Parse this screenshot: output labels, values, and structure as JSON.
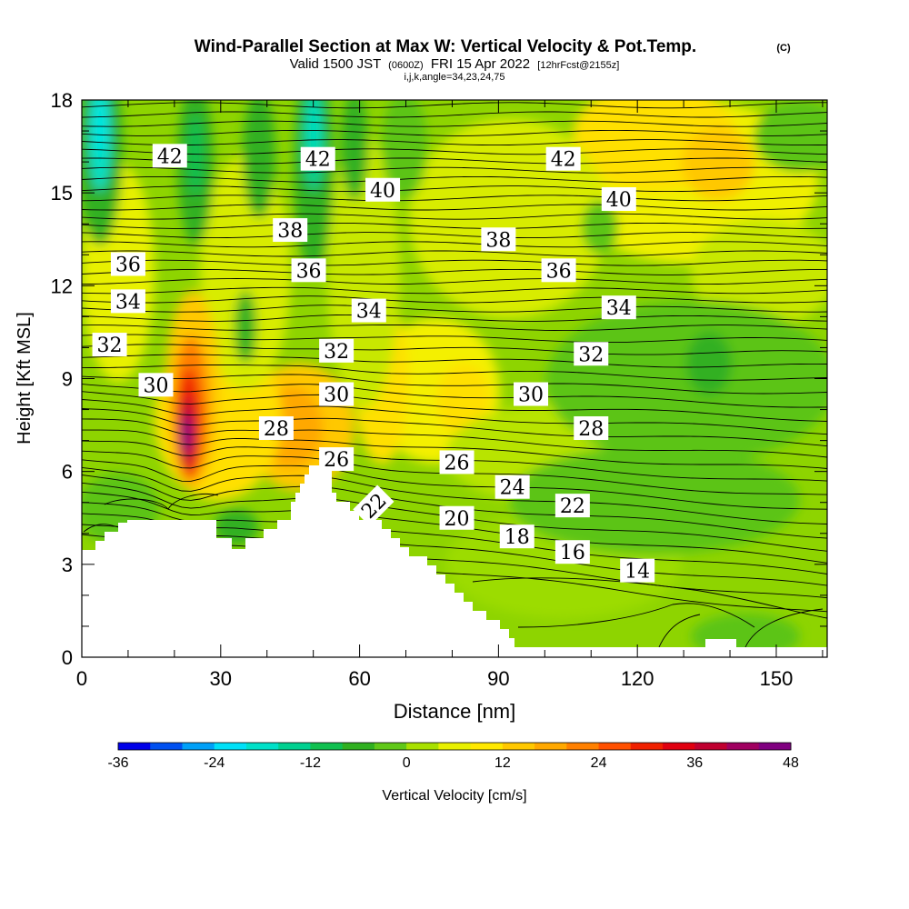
{
  "chart_data": {
    "type": "heatmap",
    "title": "Wind-Parallel Section at Max W: Vertical Velocity & Pot.Temp.",
    "title_mark": "(C)",
    "subtitle_main": "Valid 1500 JST",
    "subtitle_utc": "(0600Z)",
    "subtitle_date": "FRI 15 Apr 2022",
    "subtitle_fcst": "[12hrFcst@2155z]",
    "subtitle_indices": "i,j,k,angle=34,23,24,75",
    "xlabel": "Distance [nm]",
    "ylabel": "Height [Kft MSL]",
    "xlim": [
      0,
      161
    ],
    "ylim": [
      0,
      18
    ],
    "x_ticks": [
      "0",
      "30",
      "60",
      "90",
      "120",
      "150"
    ],
    "x_tick_values": [
      0,
      30,
      60,
      90,
      120,
      150
    ],
    "y_ticks": [
      "0",
      "3",
      "6",
      "9",
      "12",
      "15",
      "18"
    ],
    "y_tick_values": [
      0,
      3,
      6,
      9,
      12,
      15,
      18
    ],
    "colorbar_label": "Vertical Velocity [cm/s]",
    "colorbar_ticks": [
      "-36",
      "-24",
      "-12",
      "0",
      "12",
      "24",
      "36",
      "48"
    ],
    "colorbar_tick_values": [
      -36,
      -24,
      -12,
      0,
      12,
      24,
      36,
      48
    ],
    "colorbar_range": [
      -36,
      48
    ],
    "colorbar_colors": [
      "#0000e8",
      "#0050f0",
      "#00a0f8",
      "#00e0f8",
      "#00e0c8",
      "#00d090",
      "#10c050",
      "#30b020",
      "#60c818",
      "#a8e000",
      "#e8f000",
      "#ffe800",
      "#ffc800",
      "#ffa800",
      "#ff8000",
      "#ff5000",
      "#f02000",
      "#e00010",
      "#c00030",
      "#a00060",
      "#800080"
    ],
    "contour_labels": [
      {
        "text": "42",
        "x": 19,
        "y": 16.2,
        "rot": 0
      },
      {
        "text": "42",
        "x": 51,
        "y": 16.1,
        "rot": 0
      },
      {
        "text": "42",
        "x": 104,
        "y": 16.1,
        "rot": 0
      },
      {
        "text": "40",
        "x": 65,
        "y": 15.1,
        "rot": 0
      },
      {
        "text": "40",
        "x": 116,
        "y": 14.8,
        "rot": 0
      },
      {
        "text": "38",
        "x": 45,
        "y": 13.8,
        "rot": 0
      },
      {
        "text": "38",
        "x": 90,
        "y": 13.5,
        "rot": 0
      },
      {
        "text": "36",
        "x": 10,
        "y": 12.7,
        "rot": 0
      },
      {
        "text": "36",
        "x": 49,
        "y": 12.5,
        "rot": 0
      },
      {
        "text": "36",
        "x": 103,
        "y": 12.5,
        "rot": 0
      },
      {
        "text": "34",
        "x": 10,
        "y": 11.5,
        "rot": 0
      },
      {
        "text": "34",
        "x": 62,
        "y": 11.2,
        "rot": 0
      },
      {
        "text": "34",
        "x": 116,
        "y": 11.3,
        "rot": 0
      },
      {
        "text": "32",
        "x": 6,
        "y": 10.1,
        "rot": 0
      },
      {
        "text": "32",
        "x": 55,
        "y": 9.9,
        "rot": 0
      },
      {
        "text": "32",
        "x": 110,
        "y": 9.8,
        "rot": 0
      },
      {
        "text": "30",
        "x": 16,
        "y": 8.8,
        "rot": 0
      },
      {
        "text": "30",
        "x": 55,
        "y": 8.5,
        "rot": 0
      },
      {
        "text": "30",
        "x": 97,
        "y": 8.5,
        "rot": 0
      },
      {
        "text": "28",
        "x": 42,
        "y": 7.4,
        "rot": 0
      },
      {
        "text": "28",
        "x": 110,
        "y": 7.4,
        "rot": 0
      },
      {
        "text": "26",
        "x": 55,
        "y": 6.4,
        "rot": 0
      },
      {
        "text": "26",
        "x": 81,
        "y": 6.3,
        "rot": 0
      },
      {
        "text": "24",
        "x": 93,
        "y": 5.5,
        "rot": 0
      },
      {
        "text": "22",
        "x": 106,
        "y": 4.9,
        "rot": 0
      },
      {
        "text": "22",
        "x": 63,
        "y": 4.9,
        "rot": -45
      },
      {
        "text": "20",
        "x": 81,
        "y": 4.5,
        "rot": 0
      },
      {
        "text": "18",
        "x": 94,
        "y": 3.9,
        "rot": 0
      },
      {
        "text": "16",
        "x": 106,
        "y": 3.4,
        "rot": 0
      },
      {
        "text": "14",
        "x": 120,
        "y": 2.8,
        "rot": 0
      }
    ]
  }
}
